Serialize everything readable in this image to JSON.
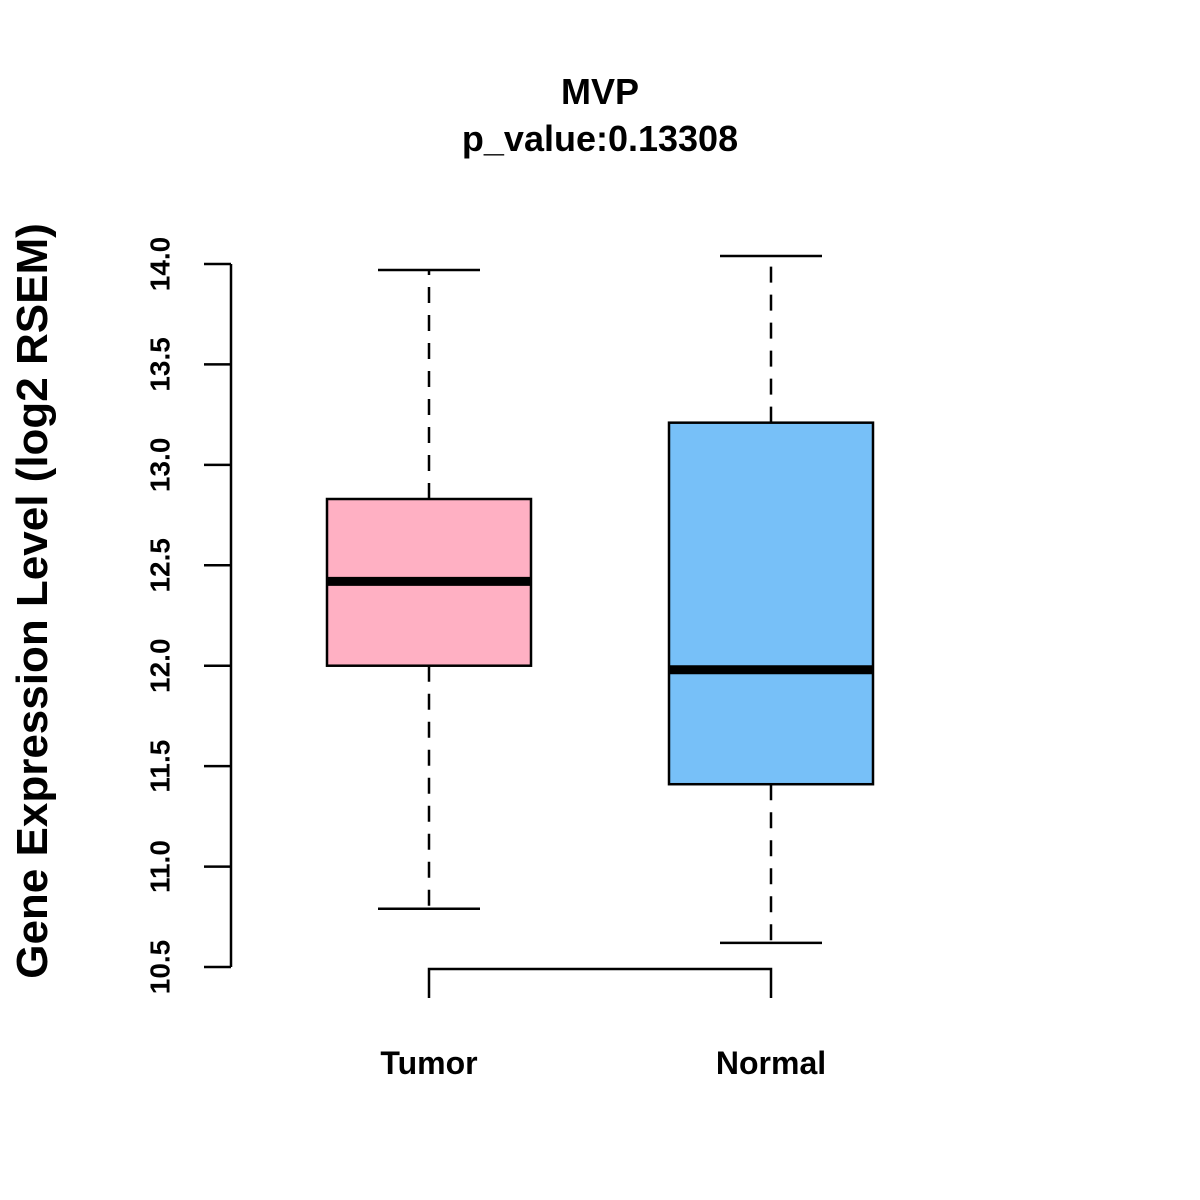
{
  "chart_data": {
    "type": "boxplot",
    "title": "MVP",
    "subtitle": "p_value:0.13308",
    "xlabel": "",
    "ylabel": "Gene Expression Level (log2 RSEM)",
    "ylim": [
      10.5,
      14.0
    ],
    "yticks": [
      10.5,
      11.0,
      11.5,
      12.0,
      12.5,
      13.0,
      13.5,
      14.0
    ],
    "ytick_labels": [
      "10.5",
      "11.0",
      "11.5",
      "12.0",
      "12.5",
      "13.0",
      "13.5",
      "14.0"
    ],
    "grid": false,
    "categories": [
      "Tumor",
      "Normal"
    ],
    "series": [
      {
        "name": "Tumor",
        "color": "#FFB0C3",
        "whisker_low": 10.79,
        "q1": 12.0,
        "median": 12.42,
        "q3": 12.83,
        "whisker_high": 13.97
      },
      {
        "name": "Normal",
        "color": "#77C0F8",
        "whisker_low": 10.62,
        "q1": 11.41,
        "median": 11.98,
        "q3": 13.21,
        "whisker_high": 14.04
      }
    ],
    "comparison_bracket": [
      "Tumor",
      "Normal"
    ]
  }
}
